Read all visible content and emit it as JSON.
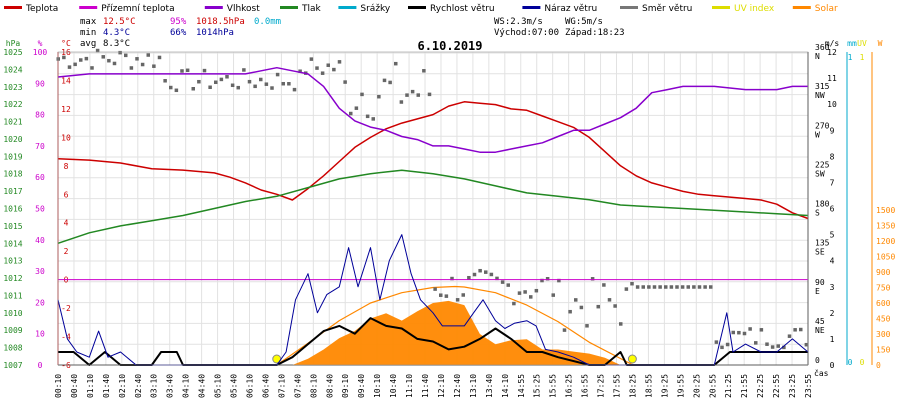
{
  "legend": [
    {
      "label": "Teplota",
      "color": "#cc0000"
    },
    {
      "label": "Přízemní teplota",
      "color": "#cc00cc"
    },
    {
      "label": "Vlhkost",
      "color": "#8800cc"
    },
    {
      "label": "Tlak",
      "color": "#228822"
    },
    {
      "label": "Srážky",
      "color": "#00aacc"
    },
    {
      "label": "Rychlost větru",
      "color": "#000000"
    },
    {
      "label": "Náraz větru",
      "color": "#000099"
    },
    {
      "label": "Směr větru",
      "color": "#777777"
    },
    {
      "label": "UV index",
      "color": "#dddd00"
    },
    {
      "label": "Solar",
      "color": "#ff8800"
    }
  ],
  "stats": {
    "max_label": "max",
    "max_temp": "12.5°C",
    "max_hum": "95%",
    "max_press": "1018.5hPa",
    "max_rain": "0.0mm",
    "min_label": "min",
    "min_temp": "4.3°C",
    "min_hum": "66%",
    "min_press": "1014hPa",
    "avg_label": "avg",
    "avg_temp": "8.3°C",
    "ws": "WS:2.3m/s",
    "wg": "WG:5m/s",
    "sunrise": "Východ:07:00",
    "sunset": "Západ:18:23"
  },
  "chart_data": {
    "type": "line",
    "title": "6.10.2019",
    "xlabel": "čas",
    "x_ticks": [
      "00:10",
      "00:40",
      "01:10",
      "01:40",
      "02:10",
      "02:40",
      "03:10",
      "03:40",
      "04:10",
      "04:40",
      "05:10",
      "05:40",
      "06:10",
      "06:40",
      "07:10",
      "07:40",
      "08:10",
      "08:40",
      "09:10",
      "09:40",
      "10:10",
      "10:40",
      "11:10",
      "11:40",
      "12:10",
      "12:40",
      "13:10",
      "13:40",
      "14:10",
      "14:55",
      "15:25",
      "15:55",
      "16:25",
      "16:55",
      "17:25",
      "17:55",
      "18:25",
      "18:55",
      "19:25",
      "19:55",
      "20:25",
      "20:55",
      "21:25",
      "21:55",
      "22:25",
      "22:55",
      "23:25",
      "23:55"
    ],
    "axes": {
      "hpa": {
        "label": "hPa",
        "color": "#228822",
        "ticks": [
          "1007",
          "1008",
          "1009",
          "1010",
          "1011",
          "1012",
          "1013",
          "1014",
          "1015",
          "1016",
          "1017",
          "1018",
          "1019",
          "1020",
          "1021",
          "1022",
          "1023",
          "1024",
          "1025"
        ]
      },
      "pct": {
        "label": "%",
        "color": "#cc00cc",
        "ticks": [
          "0",
          "10",
          "20",
          "30",
          "40",
          "50",
          "60",
          "70",
          "80",
          "90",
          "100"
        ]
      },
      "temp": {
        "label": "°C",
        "color": "#cc0000",
        "ticks": [
          "-6",
          "-4",
          "-2",
          "0",
          "2",
          "4",
          "6",
          "8",
          "10",
          "12",
          "14",
          "16"
        ]
      },
      "dir": {
        "label": "",
        "color": "#000000",
        "ticks": [
          "0",
          "45\nNE",
          "90\nE",
          "135\nSE",
          "180\nS",
          "225\nSW",
          "270\nW",
          "315\nNW",
          "360\nN"
        ]
      },
      "ms": {
        "label": "m/s",
        "color": "#000000",
        "ticks": [
          "0",
          "1",
          "2",
          "3",
          "4",
          "5",
          "6",
          "7",
          "8",
          "9",
          "10",
          "11",
          "12"
        ]
      },
      "mm": {
        "label": "mm",
        "color": "#00aacc",
        "ticks": [
          "0",
          "1"
        ]
      },
      "uv": {
        "label": "UV",
        "color": "#dddd00",
        "ticks": [
          "0",
          "1"
        ]
      },
      "w": {
        "label": "W",
        "color": "#ff8800",
        "ticks": [
          "0",
          "150",
          "300",
          "450",
          "600",
          "750",
          "900",
          "1050",
          "1200",
          "1350",
          "1500"
        ]
      }
    },
    "series": [
      {
        "name": "Teplota",
        "unit": "°C",
        "color": "#cc0000",
        "x": [
          0,
          1,
          2,
          3,
          4,
          5,
          5.5,
          6,
          6.5,
          7,
          7.5,
          8,
          8.5,
          9,
          9.5,
          10,
          10.5,
          11,
          11.5,
          12,
          12.5,
          13,
          13.5,
          14,
          14.5,
          15,
          15.5,
          16,
          16.5,
          17,
          17.5,
          18,
          18.5,
          19,
          19.5,
          20,
          20.5,
          21,
          21.5,
          22,
          22.5,
          23,
          23.5,
          24
        ],
        "y": [
          8.5,
          8.4,
          8.2,
          7.8,
          7.7,
          7.5,
          7.2,
          6.8,
          6.3,
          6.0,
          5.6,
          6.4,
          7.3,
          8.3,
          9.3,
          10.0,
          10.6,
          11.0,
          11.3,
          11.6,
          12.2,
          12.5,
          12.4,
          12.3,
          12.0,
          11.9,
          11.5,
          11.1,
          10.7,
          10.0,
          9.0,
          8.0,
          7.3,
          6.8,
          6.5,
          6.2,
          6.0,
          5.9,
          5.8,
          5.7,
          5.6,
          5.3,
          4.7,
          4.3
        ]
      },
      {
        "name": "Přízemní teplota",
        "unit": "°C",
        "color": "#cc00cc",
        "x": [
          0,
          24
        ],
        "y": [
          0,
          0
        ]
      },
      {
        "name": "Vlhkost",
        "unit": "%",
        "color": "#8800cc",
        "x": [
          0,
          1,
          2,
          3,
          4,
          5,
          6,
          6.5,
          7,
          7.5,
          8,
          8.5,
          9,
          9.5,
          10,
          10.5,
          11,
          11.5,
          12,
          12.5,
          13,
          13.5,
          14,
          14.5,
          15,
          15.5,
          16,
          16.5,
          17,
          17.5,
          18,
          18.5,
          19,
          19.5,
          20,
          21,
          22,
          23,
          23.5,
          24
        ],
        "y": [
          92,
          93,
          93,
          93,
          93,
          93,
          93,
          94,
          95,
          94,
          93,
          89,
          82,
          78,
          76,
          75,
          73,
          72,
          70,
          70,
          69,
          68,
          68,
          69,
          70,
          71,
          73,
          75,
          75,
          77,
          79,
          82,
          87,
          88,
          89,
          89,
          88,
          88,
          89,
          89
        ]
      },
      {
        "name": "Tlak",
        "unit": "hPa",
        "color": "#228822",
        "x": [
          0,
          1,
          2,
          3,
          4,
          5,
          6,
          7,
          8,
          9,
          10,
          11,
          12,
          13,
          14,
          15,
          16,
          17,
          18,
          19,
          20,
          21,
          22,
          23,
          24
        ],
        "y": [
          1014.0,
          1014.6,
          1015.0,
          1015.3,
          1015.6,
          1016.0,
          1016.4,
          1016.7,
          1017.2,
          1017.7,
          1018.0,
          1018.2,
          1018.0,
          1017.7,
          1017.3,
          1016.9,
          1016.7,
          1016.5,
          1016.2,
          1016.1,
          1016.0,
          1015.9,
          1015.8,
          1015.7,
          1015.6
        ]
      },
      {
        "name": "Rychlost větru",
        "unit": "m/s",
        "color": "#000000",
        "x": [
          0,
          0.5,
          1,
          1.5,
          2,
          3,
          3.3,
          3.8,
          4,
          6,
          7,
          7.5,
          8,
          8.5,
          9,
          9.5,
          10,
          10.5,
          11,
          11.5,
          12,
          12.5,
          13,
          13.5,
          14,
          14.5,
          15,
          15.5,
          16,
          17,
          17.5,
          18,
          18.2,
          20,
          21,
          21.5,
          22,
          22.5,
          23,
          23.5,
          24
        ],
        "y": [
          0.5,
          0.5,
          0,
          0.5,
          0,
          0,
          0.5,
          0.5,
          0,
          0,
          0,
          0.3,
          0.8,
          1.3,
          1.5,
          1.2,
          1.8,
          1.5,
          1.4,
          1.0,
          0.9,
          0.6,
          0.7,
          1.0,
          1.4,
          1.0,
          0.5,
          0.5,
          0.3,
          0,
          0,
          0.5,
          0,
          0,
          0,
          0.5,
          0.5,
          0.5,
          0.5,
          0.5,
          0.5
        ]
      },
      {
        "name": "Náraz větru",
        "unit": "m/s",
        "color": "#000099",
        "x": [
          0,
          0.3,
          0.6,
          1,
          1.3,
          1.6,
          2,
          2.5,
          6,
          7,
          7.3,
          7.6,
          8,
          8.3,
          8.6,
          9,
          9.3,
          9.6,
          10,
          10.3,
          10.6,
          11,
          11.3,
          11.6,
          12,
          12.3,
          12.6,
          13,
          13.3,
          13.6,
          14,
          14.3,
          14.6,
          15,
          15.3,
          15.6,
          16,
          16.5,
          17,
          18,
          19,
          20,
          21,
          21.4,
          21.6,
          22,
          22.5,
          23,
          23.5,
          24
        ],
        "y": [
          2.5,
          1.0,
          0.5,
          0.3,
          1.3,
          0.3,
          0.5,
          0,
          0,
          0,
          0.5,
          2.5,
          3.5,
          2.0,
          2.7,
          3.0,
          4.5,
          3.0,
          4.5,
          2.5,
          4.0,
          5.0,
          3.5,
          2.5,
          2.0,
          1.5,
          1.5,
          1.5,
          2.0,
          2.5,
          1.7,
          1.4,
          1.6,
          1.7,
          1.5,
          0.6,
          0.5,
          0.3,
          0,
          0,
          0,
          0,
          0,
          2.0,
          0.5,
          0.8,
          0.5,
          0.5,
          1.0,
          0.5
        ]
      },
      {
        "name": "Solar",
        "unit": "W",
        "color": "#ff8800",
        "x": [
          7.5,
          8,
          8.5,
          9,
          9.5,
          10,
          10.5,
          11,
          11.5,
          12,
          12.5,
          13,
          13.5,
          14,
          14.5,
          15,
          15.5,
          16,
          16.5,
          17,
          17.5,
          18
        ],
        "y": [
          0,
          60,
          150,
          260,
          330,
          450,
          500,
          430,
          520,
          600,
          620,
          580,
          300,
          200,
          240,
          250,
          150,
          150,
          130,
          110,
          70,
          0
        ]
      }
    ],
    "solar_clear_sky": {
      "x": [
        7,
        8,
        9,
        10,
        11,
        12,
        12.7,
        13,
        14,
        15,
        16,
        17,
        18.4
      ],
      "y": [
        0,
        210,
        430,
        600,
        700,
        750,
        760,
        755,
        700,
        580,
        420,
        220,
        0
      ]
    },
    "wind_dir_points_note": "scatter of wind direction (degrees) shown as grey squares"
  }
}
